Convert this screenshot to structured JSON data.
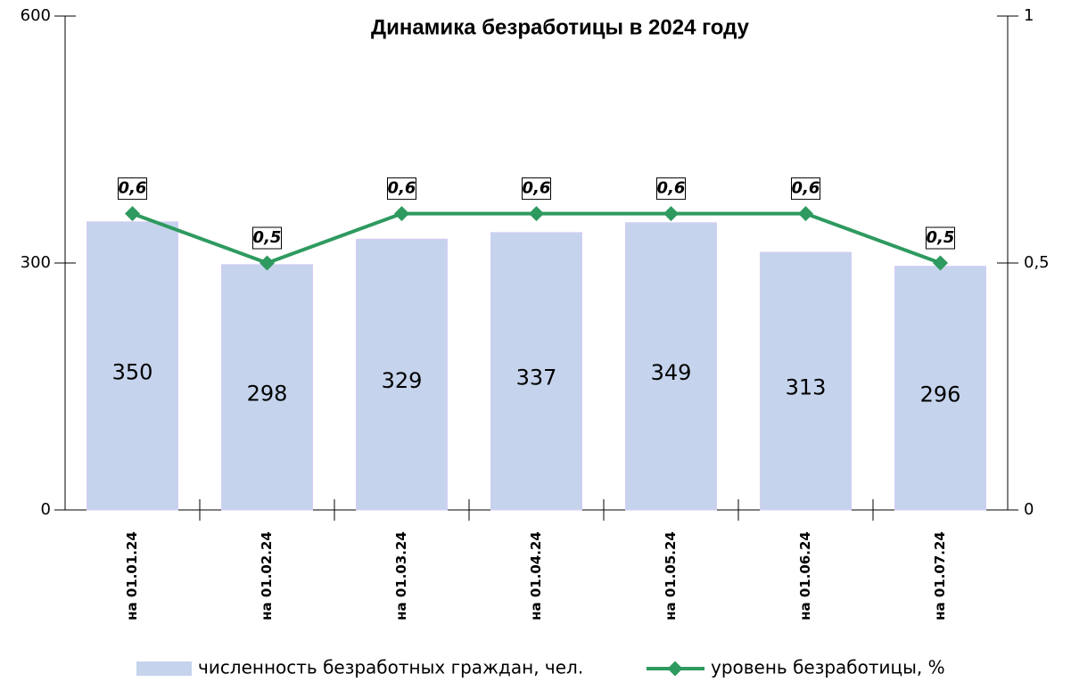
{
  "chart_data": {
    "type": "bar",
    "title": "Динамика безработицы в 2024 году",
    "categories": [
      "на 01.01.24",
      "на 01.02.24",
      "на 01.03.24",
      "на 01.04.24",
      "на 01.05.24",
      "на 01.06.24",
      "на 01.07.24"
    ],
    "series": [
      {
        "name": "численность безработных граждан, чел.",
        "type": "bar",
        "color": "#c5d3ec",
        "values": [
          350,
          298,
          329,
          337,
          349,
          313,
          296
        ]
      },
      {
        "name": "уровень безработицы, %",
        "type": "line",
        "axis": "y2",
        "color": "#2e9a5f",
        "values": [
          0.6,
          0.5,
          0.6,
          0.6,
          0.6,
          0.6,
          0.5
        ],
        "value_labels": [
          "0,6",
          "0,5",
          "0,6",
          "0,6",
          "0,6",
          "0,6",
          "0,5"
        ]
      }
    ],
    "ylim": [
      0,
      600
    ],
    "yticks": [
      0,
      300,
      600
    ],
    "y2lim": [
      0,
      1
    ],
    "y2ticks": [
      0,
      {
        "value": 0.5,
        "label": "0,5"
      },
      1
    ],
    "legend": "bottom"
  }
}
